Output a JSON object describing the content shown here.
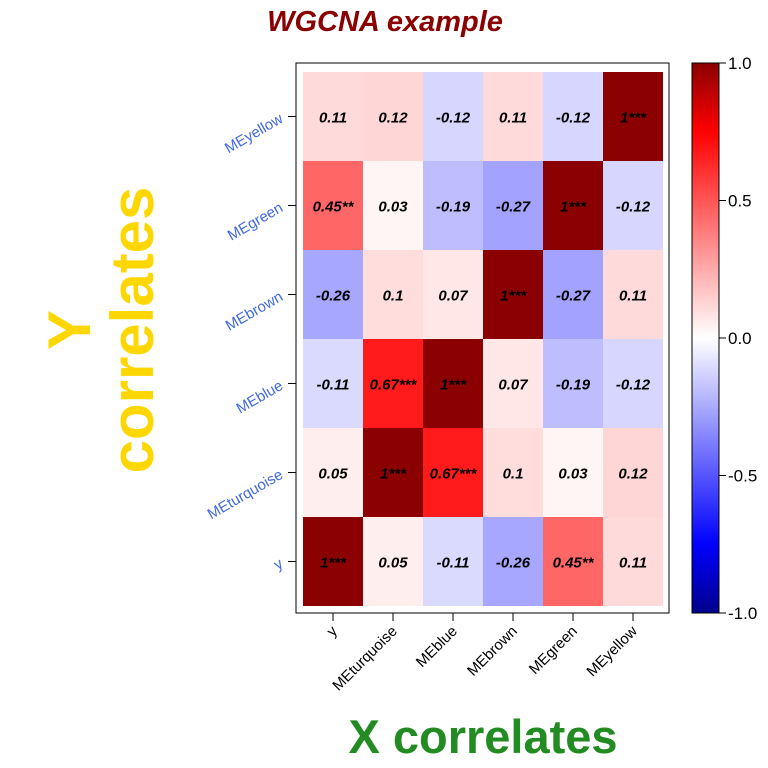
{
  "chart_data": {
    "type": "heatmap",
    "title": "WGCNA example",
    "xlabel": "X correlates",
    "ylabel": "Y correlates",
    "x_categories": [
      "y",
      "MEturquoise",
      "MEblue",
      "MEbrown",
      "MEgreen",
      "MEyellow"
    ],
    "y_categories": [
      "MEyellow",
      "MEgreen",
      "MEbrown",
      "MEblue",
      "MEturquoise",
      "y"
    ],
    "values": [
      [
        0.11,
        0.12,
        -0.12,
        0.11,
        -0.12,
        1
      ],
      [
        0.45,
        0.03,
        -0.19,
        -0.27,
        1,
        -0.12
      ],
      [
        -0.26,
        0.1,
        0.07,
        1,
        -0.27,
        0.11
      ],
      [
        -0.11,
        0.67,
        1,
        0.07,
        -0.19,
        -0.12
      ],
      [
        0.05,
        1,
        0.67,
        0.1,
        0.03,
        0.12
      ],
      [
        1,
        0.05,
        -0.11,
        -0.26,
        0.45,
        0.11
      ]
    ],
    "labels": [
      [
        "0.11",
        "0.12",
        "-0.12",
        "0.11",
        "-0.12",
        "1***"
      ],
      [
        "0.45**",
        "0.03",
        "-0.19",
        "-0.27",
        "1***",
        "-0.12"
      ],
      [
        "-0.26",
        "0.1",
        "0.07",
        "1***",
        "-0.27",
        "0.11"
      ],
      [
        "-0.11",
        "0.67***",
        "1***",
        "0.07",
        "-0.19",
        "-0.12"
      ],
      [
        "0.05",
        "1***",
        "0.67***",
        "0.1",
        "0.03",
        "0.12"
      ],
      [
        "1***",
        "0.05",
        "-0.11",
        "-0.26",
        "0.45**",
        "0.11"
      ]
    ],
    "color_range": [
      -1.0,
      1.0
    ],
    "colorbar_ticks": [
      "1.0",
      "0.5",
      "0.0",
      "-0.5",
      "-1.0"
    ],
    "colorbar_tick_values": [
      1.0,
      0.5,
      0.0,
      -0.5,
      -1.0
    ],
    "colors": {
      "title": "#8B0000",
      "xlabel": "#228B22",
      "ylabel": "#FFD700",
      "y_ticks": "#4169E1",
      "x_ticks": "#000000",
      "cell_text": "#000000"
    }
  }
}
